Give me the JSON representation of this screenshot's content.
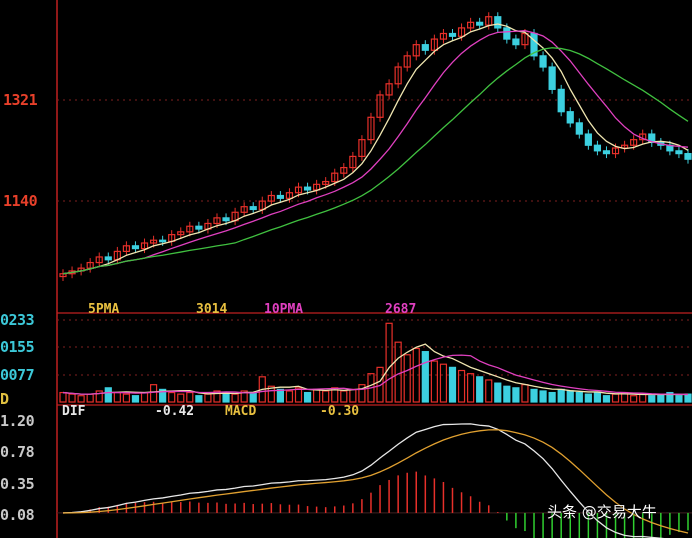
{
  "watermark": "头条 @交易大牛",
  "price_panel": {
    "y_labels": [
      "1321",
      "1140"
    ]
  },
  "volume_panel": {
    "y_labels": [
      "0233",
      "0155",
      "0077"
    ],
    "legend": {
      "ma5_label": "5PMA",
      "ma5_value": "3014",
      "ma10_label": "10PMA",
      "ma10_value": "2687"
    }
  },
  "macd_panel": {
    "y_labels": [
      "1.20",
      "0.78",
      "0.35",
      "0.08"
    ],
    "side_label": "D",
    "legend": {
      "dif_label": "DIF",
      "dif_value": "-0.42",
      "macd_label": "MACD",
      "macd_value": "-0.30"
    }
  },
  "colors": {
    "up": "#e8302a",
    "down": "#3cd0e0",
    "ma_short": "#f0e6b0",
    "ma_mid": "#e040c0",
    "ma_long": "#40c040",
    "macd_pos": "#e8302a",
    "macd_neg": "#30d030",
    "dif": "#e8e8e8",
    "dea": "#e0a030"
  },
  "chart_data": {
    "type": "candlestick",
    "title": "",
    "ylim": [
      963,
      1491
    ],
    "close": [
      1010,
      1015,
      1020,
      1030,
      1040,
      1035,
      1050,
      1060,
      1055,
      1065,
      1070,
      1068,
      1080,
      1085,
      1095,
      1090,
      1100,
      1110,
      1105,
      1120,
      1130,
      1125,
      1140,
      1150,
      1145,
      1155,
      1165,
      1160,
      1170,
      1175,
      1190,
      1200,
      1220,
      1250,
      1290,
      1330,
      1350,
      1380,
      1400,
      1420,
      1410,
      1430,
      1440,
      1435,
      1450,
      1460,
      1455,
      1470,
      1450,
      1430,
      1420,
      1440,
      1400,
      1380,
      1340,
      1300,
      1280,
      1260,
      1240,
      1230,
      1225,
      1235,
      1240,
      1250,
      1260,
      1245,
      1240,
      1230,
      1225,
      1215
    ],
    "volume": [
      30,
      25,
      20,
      25,
      35,
      45,
      30,
      25,
      20,
      30,
      55,
      40,
      30,
      25,
      30,
      20,
      25,
      35,
      30,
      25,
      35,
      30,
      80,
      50,
      40,
      35,
      45,
      30,
      40,
      35,
      45,
      35,
      40,
      55,
      90,
      110,
      250,
      190,
      150,
      170,
      160,
      130,
      120,
      110,
      100,
      90,
      80,
      70,
      60,
      50,
      45,
      55,
      40,
      35,
      30,
      40,
      35,
      30,
      25,
      30,
      20,
      25,
      30,
      20,
      25,
      20,
      25,
      30,
      20,
      25
    ],
    "volume_ylim": [
      0,
      270
    ],
    "macd_ylim": [
      -0.3,
      1.3
    ]
  }
}
